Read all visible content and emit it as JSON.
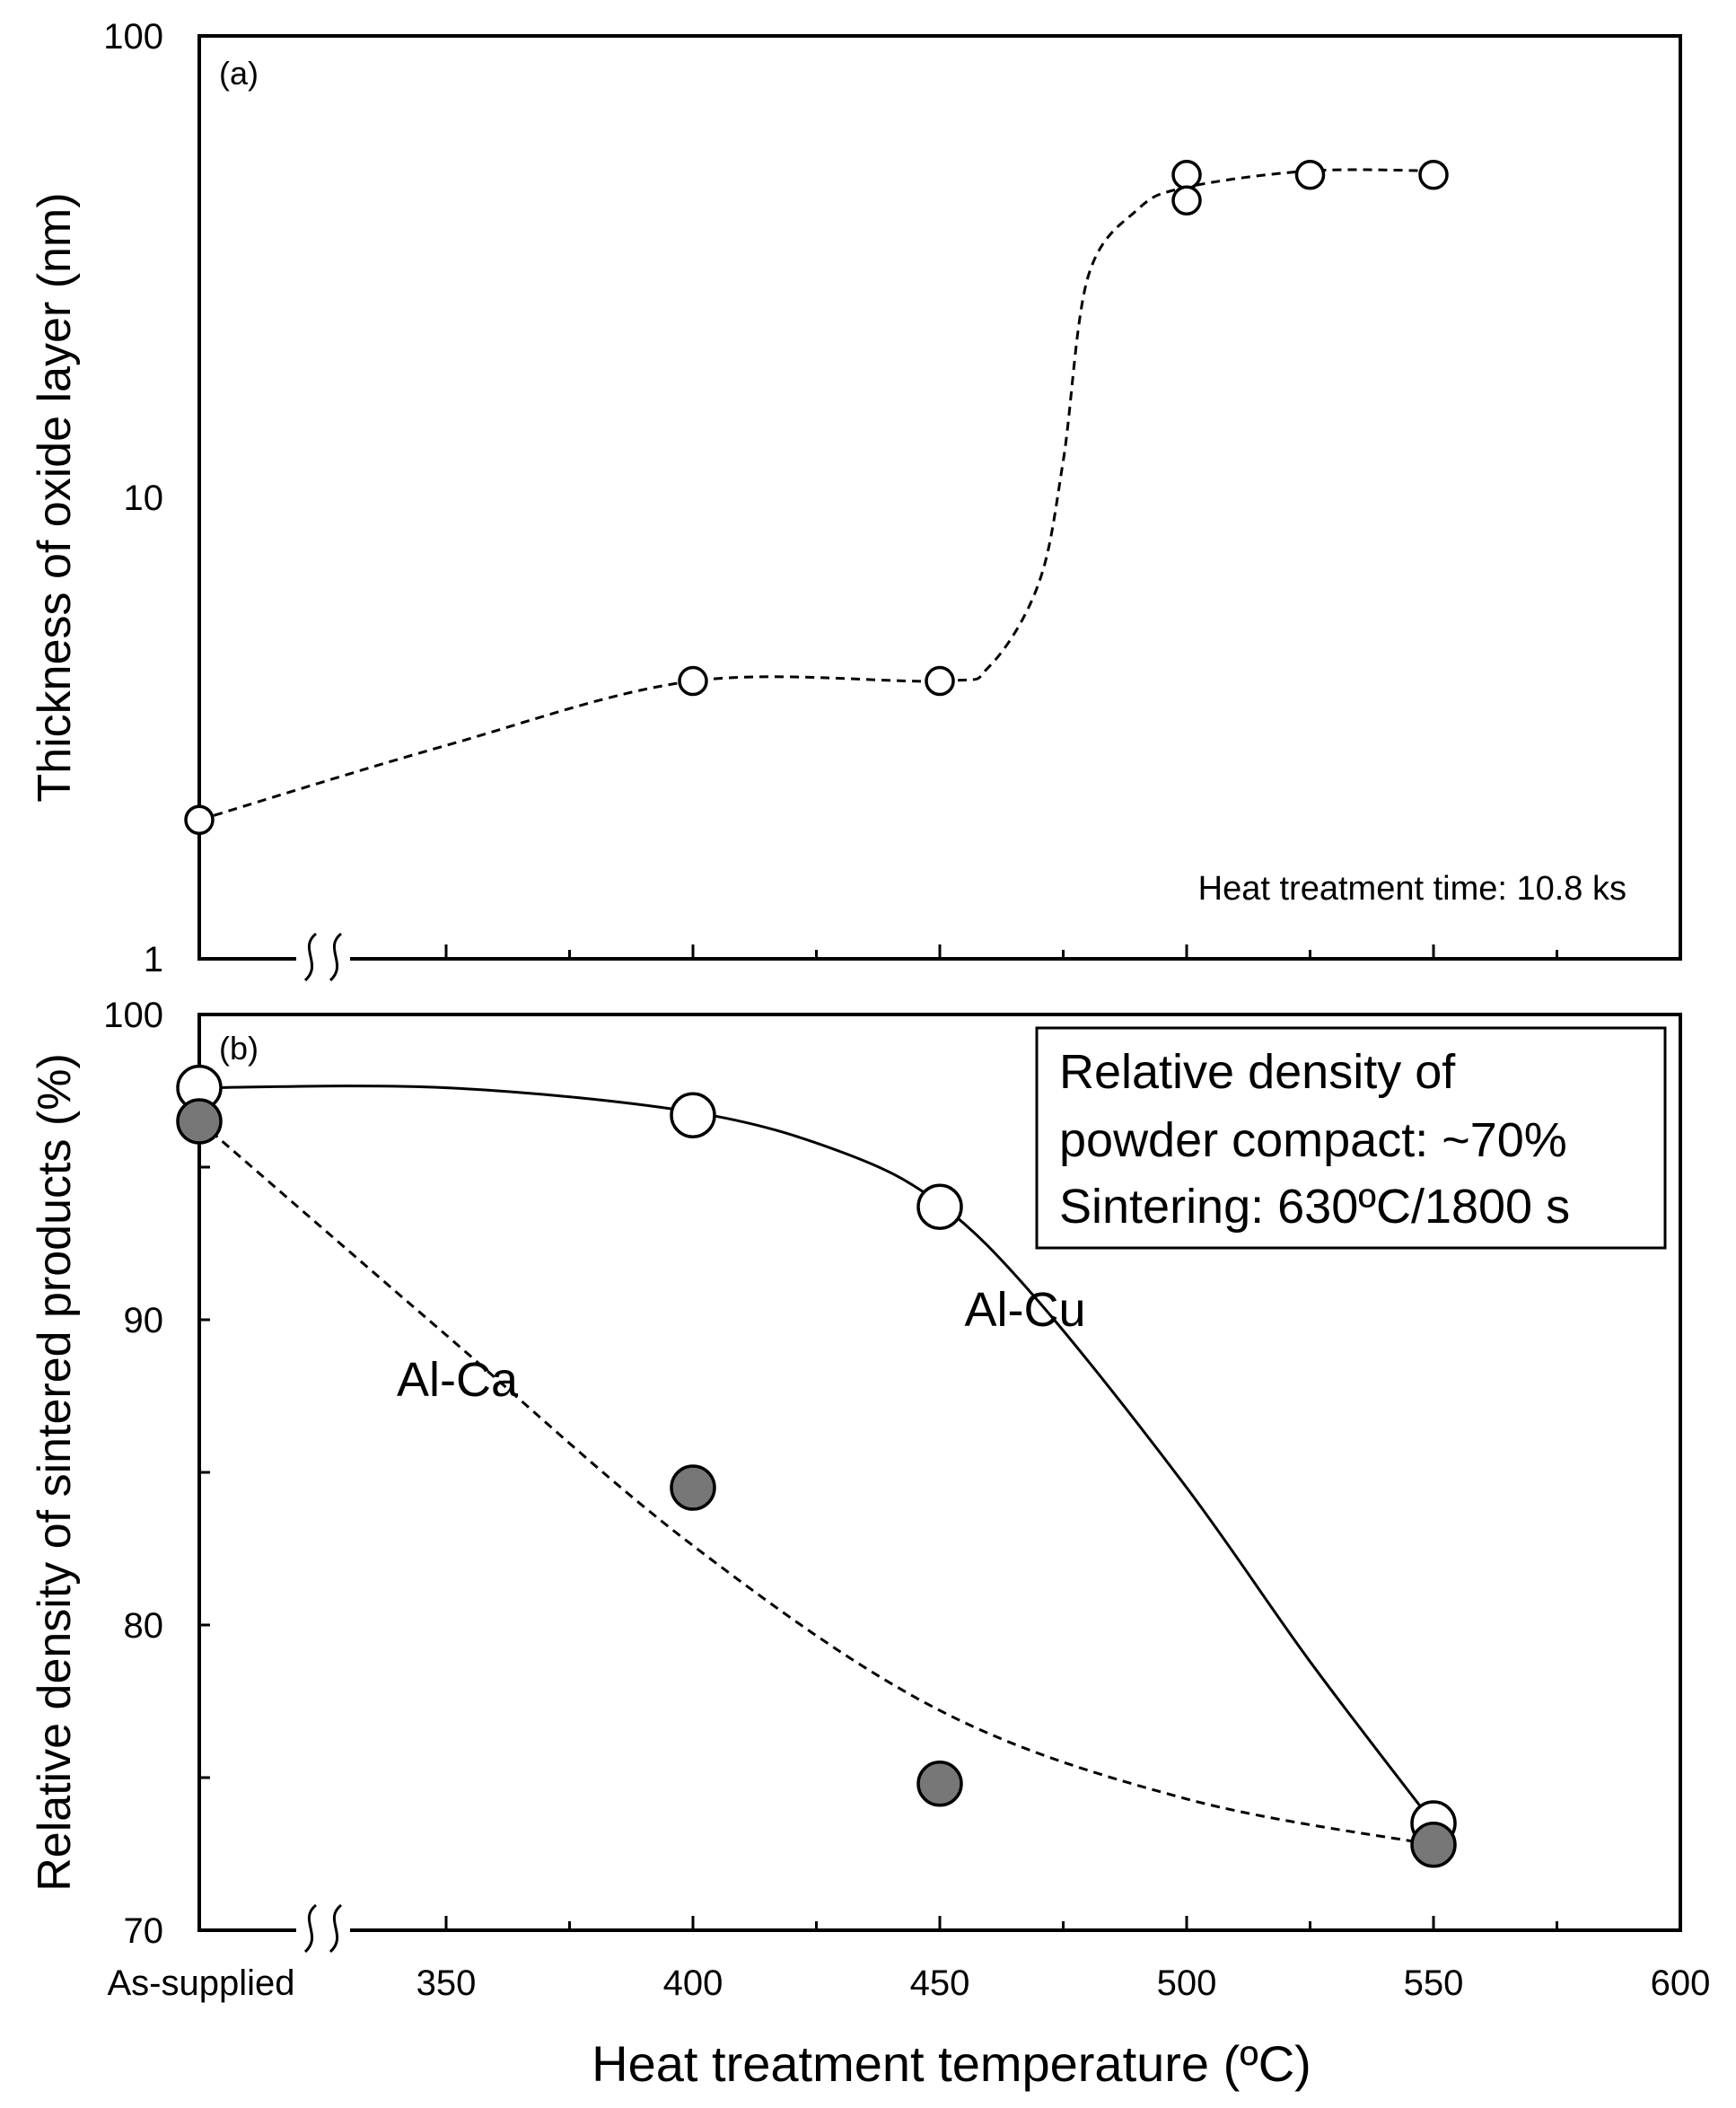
{
  "figure": {
    "xlabel": "Heat treatment temperature (ºC)",
    "x_ticks": [
      {
        "label": "As-supplied",
        "value": 300
      },
      {
        "label": "350",
        "value": 350
      },
      {
        "label": "400",
        "value": 400
      },
      {
        "label": "450",
        "value": 450
      },
      {
        "label": "500",
        "value": 500
      },
      {
        "label": "550",
        "value": 550
      },
      {
        "label": "600",
        "value": 600
      }
    ],
    "axis_break": "≈"
  },
  "chart_data": [
    {
      "id": "a",
      "type": "scatter",
      "panel_label": "(a)",
      "ylabel": "Thickness of oxide layer (nm)",
      "yscale": "log",
      "ylim": [
        1,
        100
      ],
      "y_ticks": [
        "1",
        "10",
        "100"
      ],
      "xlim": [
        300,
        600
      ],
      "annotation": "Heat treatment time: 10.8 ks",
      "series": [
        {
          "name": "Oxide layer thickness",
          "marker": "open-circle",
          "points": [
            {
              "x": 300,
              "y": 2.0
            },
            {
              "x": 400,
              "y": 4.0
            },
            {
              "x": 450,
              "y": 4.0
            },
            {
              "x": 500,
              "y": 50
            },
            {
              "x": 500,
              "y": 44
            },
            {
              "x": 525,
              "y": 50
            },
            {
              "x": 550,
              "y": 50
            }
          ],
          "trend_style": "dashed",
          "trend": [
            [
              300,
              2.0
            ],
            [
              350,
              2.9
            ],
            [
              400,
              4.0
            ],
            [
              450,
              4.0
            ],
            [
              460,
              4.3
            ],
            [
              470,
              6.5
            ],
            [
              475,
              12
            ],
            [
              480,
              30
            ],
            [
              490,
              42
            ],
            [
              500,
              47
            ],
            [
              525,
              51
            ],
            [
              550,
              51
            ]
          ]
        }
      ]
    },
    {
      "id": "b",
      "type": "scatter",
      "panel_label": "(b)",
      "ylabel": "Relative density of sintered products (%)",
      "yscale": "linear",
      "ylim": [
        70,
        100
      ],
      "y_ticks": [
        "70",
        "80",
        "90",
        "100"
      ],
      "xlim": [
        300,
        600
      ],
      "legend_box": [
        "Relative density of",
        "powder compact: ~70%",
        "Sintering: 630ºC/1800 s"
      ],
      "series": [
        {
          "name": "Al-Cu",
          "marker": "open-circle",
          "points": [
            {
              "x": 300,
              "y": 97.6
            },
            {
              "x": 400,
              "y": 96.7
            },
            {
              "x": 450,
              "y": 93.7
            },
            {
              "x": 550,
              "y": 73.5
            }
          ],
          "trend_style": "solid",
          "trend": [
            [
              300,
              97.6
            ],
            [
              350,
              97.6
            ],
            [
              400,
              96.8
            ],
            [
              430,
              95.5
            ],
            [
              450,
              93.8
            ],
            [
              470,
              90.6
            ],
            [
              500,
              84.5
            ],
            [
              525,
              78.8
            ],
            [
              550,
              73.5
            ]
          ]
        },
        {
          "name": "Al-Ca",
          "marker": "filled-circle",
          "points": [
            {
              "x": 300,
              "y": 96.5
            },
            {
              "x": 400,
              "y": 84.5
            },
            {
              "x": 450,
              "y": 74.8
            },
            {
              "x": 550,
              "y": 72.8
            }
          ],
          "trend_style": "dashed",
          "trend": [
            [
              300,
              96.5
            ],
            [
              350,
              89.5
            ],
            [
              400,
              82.6
            ],
            [
              450,
              77.2
            ],
            [
              500,
              74.3
            ],
            [
              550,
              72.8
            ]
          ]
        }
      ],
      "annotations": [
        {
          "text": "Al-Cu",
          "x": 455,
          "y": 89.8
        },
        {
          "text": "Al-Ca",
          "x": 340,
          "y": 87.5
        }
      ]
    }
  ]
}
